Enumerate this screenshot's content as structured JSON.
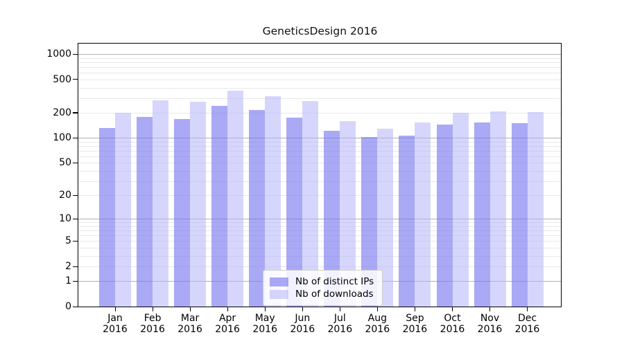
{
  "chart_data": {
    "type": "bar",
    "title": "GeneticsDesign 2016",
    "categories": [
      "Jan",
      "Feb",
      "Mar",
      "Apr",
      "May",
      "Jun",
      "Jul",
      "Aug",
      "Sep",
      "Oct",
      "Nov",
      "Dec"
    ],
    "year": "2016",
    "series": [
      {
        "name": "Nb of distinct IPs",
        "values": [
          132,
          179,
          170,
          243,
          214,
          176,
          122,
          103,
          107,
          145,
          153,
          151
        ]
      },
      {
        "name": "Nb of downloads",
        "values": [
          200,
          283,
          271,
          364,
          315,
          278,
          160,
          130,
          153,
          199,
          208,
          204
        ]
      }
    ],
    "yscale": "log10(1+x)",
    "yticks": [
      0,
      1,
      2,
      5,
      10,
      20,
      50,
      100,
      200,
      500,
      1000
    ],
    "ylim": [
      0,
      1350
    ],
    "grid": "horizontal, major at decades, faint minors",
    "legend_position": "inside-bottom-center",
    "colors": {
      "bar_distinct_ips": "rgba(120,120,240,0.64)",
      "bar_downloads": "rgba(180,180,250,0.55)",
      "bar_distinct_ips_hex_apparent": "#a9a9f5",
      "bar_downloads_hex_apparent": "#d6d6fc",
      "grid_major": "#b0b0b0",
      "grid_minor": "#e8e8e8",
      "spine": "#000000",
      "legend_border": "#cccccc"
    }
  }
}
